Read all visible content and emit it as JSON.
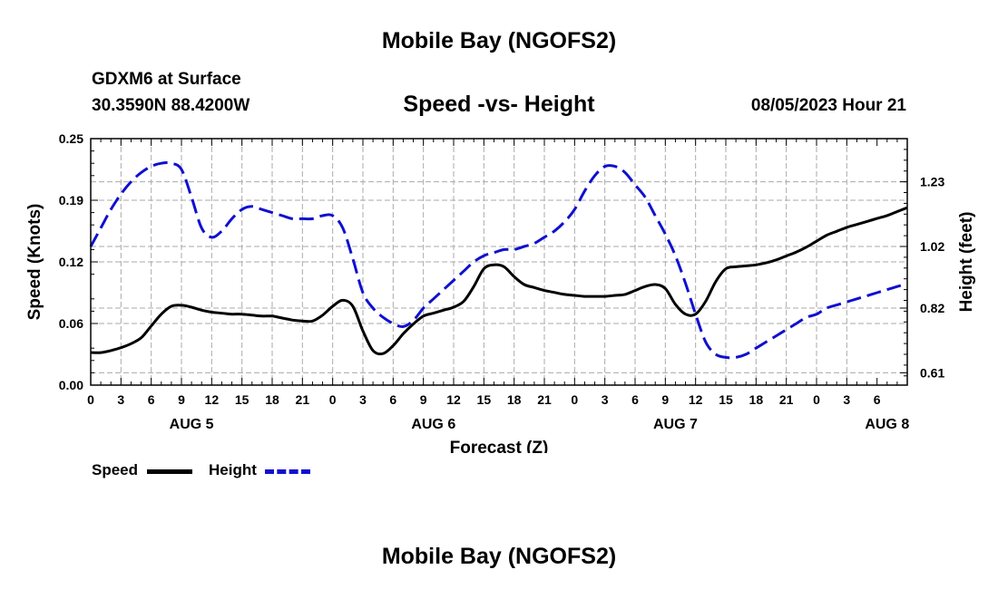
{
  "page": {
    "title": "Mobile Bay (NGOFS2)",
    "station": "GDXM6 at Surface",
    "coords": "30.3590N  88.4200W",
    "subtitle": "Speed -vs- Height",
    "datetime": "08/05/2023 Hour 21",
    "footer_title": "Mobile Bay (NGOFS2)"
  },
  "legend": {
    "speed_label": "Speed",
    "height_label": "Height"
  },
  "colors": {
    "speed": "#000000",
    "height": "#1010d0",
    "grid": "#aaaaaa"
  },
  "chart_data": {
    "type": "line",
    "title": "Speed -vs- Height",
    "xlabel": "Forecast (Z)",
    "ylabel": "Speed (Knots)",
    "y2label": "Height (feet)",
    "xlim": [
      0,
      81
    ],
    "ylim": [
      0,
      0.25
    ],
    "y2lim": [
      0.57,
      1.37
    ],
    "x_tick_labels": [
      "0",
      "3",
      "6",
      "9",
      "12",
      "15",
      "18",
      "21",
      "0",
      "3",
      "6",
      "9",
      "12",
      "15",
      "18",
      "21",
      "0",
      "3",
      "6",
      "9",
      "12",
      "15",
      "18",
      "21",
      "0",
      "3",
      "6"
    ],
    "day_labels": [
      {
        "label": "AUG 5",
        "x": 10
      },
      {
        "label": "AUG 6",
        "x": 34
      },
      {
        "label": "AUG 7",
        "x": 58
      },
      {
        "label": "AUG 8",
        "x": 79
      }
    ],
    "y_ticks": [
      "0.00",
      "0.06",
      "0.12",
      "0.19",
      "0.25"
    ],
    "y_tick_values": [
      0,
      0.0625,
      0.125,
      0.1875,
      0.25
    ],
    "y2_ticks": [
      "0.61",
      "0.82",
      "1.02",
      "1.23"
    ],
    "y2_tick_values": [
      0.61,
      0.82,
      1.02,
      1.23
    ],
    "series": [
      {
        "name": "Speed",
        "axis": "left",
        "style": "solid",
        "x": [
          0,
          1,
          2,
          3,
          4,
          5,
          6,
          7,
          8,
          9,
          10,
          11,
          12,
          13,
          14,
          15,
          16,
          17,
          18,
          19,
          20,
          21,
          22,
          23,
          24,
          25,
          26,
          27,
          28,
          29,
          30,
          31,
          32,
          33,
          34,
          35,
          36,
          37,
          38,
          39,
          40,
          41,
          42,
          43,
          44,
          45,
          46,
          47,
          48,
          49,
          50,
          51,
          52,
          53,
          54,
          55,
          56,
          57,
          58,
          59,
          60,
          61,
          62,
          63,
          64,
          65,
          66,
          67,
          68,
          69,
          70,
          71,
          72,
          73,
          74,
          75,
          76,
          77,
          78,
          79,
          80,
          81
        ],
        "values": [
          0.033,
          0.033,
          0.035,
          0.038,
          0.042,
          0.048,
          0.06,
          0.072,
          0.08,
          0.081,
          0.079,
          0.076,
          0.074,
          0.073,
          0.072,
          0.072,
          0.071,
          0.07,
          0.07,
          0.068,
          0.066,
          0.065,
          0.065,
          0.071,
          0.08,
          0.086,
          0.08,
          0.055,
          0.035,
          0.032,
          0.04,
          0.052,
          0.062,
          0.07,
          0.073,
          0.076,
          0.079,
          0.085,
          0.1,
          0.118,
          0.122,
          0.12,
          0.11,
          0.102,
          0.099,
          0.096,
          0.094,
          0.092,
          0.091,
          0.09,
          0.09,
          0.09,
          0.091,
          0.092,
          0.096,
          0.1,
          0.102,
          0.098,
          0.082,
          0.072,
          0.072,
          0.085,
          0.105,
          0.118,
          0.12,
          0.121,
          0.122,
          0.124,
          0.127,
          0.131,
          0.135,
          0.14,
          0.146,
          0.152,
          0.156,
          0.16,
          0.163,
          0.166,
          0.169,
          0.172,
          0.176,
          0.18
        ]
      },
      {
        "name": "Height",
        "axis": "right",
        "style": "dashed",
        "x": [
          0,
          1,
          2,
          3,
          4,
          5,
          6,
          7,
          8,
          9,
          10,
          11,
          12,
          13,
          14,
          15,
          16,
          17,
          18,
          19,
          20,
          21,
          22,
          23,
          24,
          25,
          26,
          27,
          28,
          29,
          30,
          31,
          32,
          33,
          34,
          35,
          36,
          37,
          38,
          39,
          40,
          41,
          42,
          43,
          44,
          45,
          46,
          47,
          48,
          49,
          50,
          51,
          52,
          53,
          54,
          55,
          56,
          57,
          58,
          59,
          60,
          61,
          62,
          63,
          64,
          65,
          66,
          67,
          68,
          69,
          70,
          71,
          72,
          73,
          74,
          75,
          76,
          77,
          78,
          79,
          80,
          81
        ],
        "values": [
          1.02,
          1.08,
          1.14,
          1.19,
          1.23,
          1.26,
          1.28,
          1.29,
          1.29,
          1.27,
          1.18,
          1.08,
          1.05,
          1.07,
          1.11,
          1.14,
          1.15,
          1.14,
          1.13,
          1.12,
          1.11,
          1.11,
          1.11,
          1.12,
          1.12,
          1.08,
          0.98,
          0.87,
          0.82,
          0.79,
          0.77,
          0.76,
          0.78,
          0.82,
          0.85,
          0.88,
          0.91,
          0.94,
          0.97,
          0.99,
          1.0,
          1.01,
          1.01,
          1.02,
          1.03,
          1.05,
          1.07,
          1.1,
          1.14,
          1.2,
          1.25,
          1.28,
          1.28,
          1.26,
          1.22,
          1.18,
          1.12,
          1.06,
          0.99,
          0.9,
          0.8,
          0.71,
          0.67,
          0.66,
          0.66,
          0.67,
          0.69,
          0.71,
          0.73,
          0.75,
          0.77,
          0.79,
          0.8,
          0.82,
          0.83,
          0.84,
          0.85,
          0.86,
          0.87,
          0.88,
          0.89,
          0.9
        ]
      }
    ]
  }
}
